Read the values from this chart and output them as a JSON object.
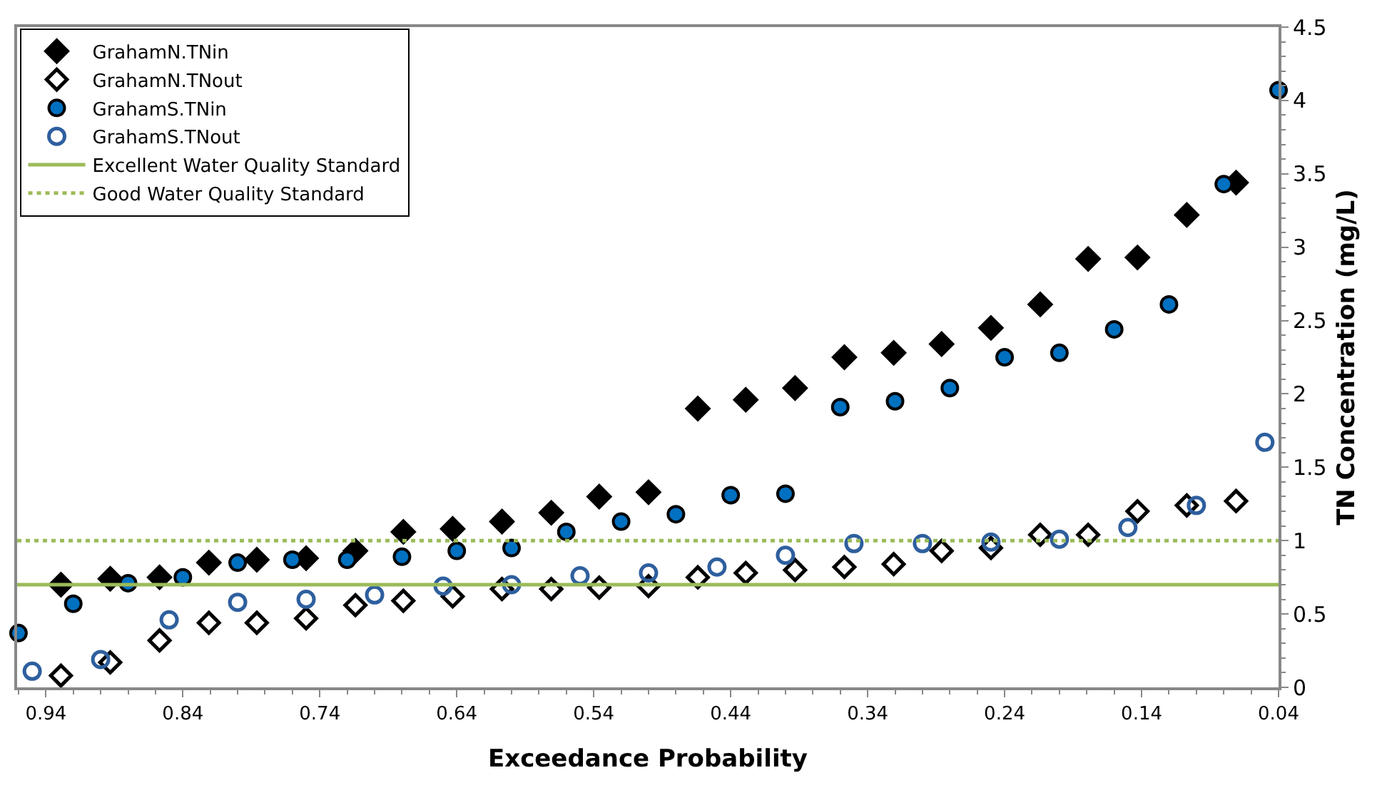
{
  "chart_data": {
    "type": "scatter",
    "xlabel": "Exceedance Probability",
    "ylabel": "TN Concentration (mg/L)",
    "xlim": [
      0.961,
      0.04
    ],
    "xticks": [
      0.94,
      0.84,
      0.74,
      0.64,
      0.54,
      0.44,
      0.34,
      0.24,
      0.14,
      0.04
    ],
    "ylim": [
      0,
      4.5
    ],
    "yticks": [
      0,
      0.5,
      1,
      1.5,
      2,
      2.5,
      3,
      3.5,
      4,
      4.5
    ],
    "legend": "top left",
    "series": [
      {
        "name": "GrahamN.TNin",
        "color": "#000000",
        "marker": "diamond",
        "x": [
          0.929,
          0.893,
          0.857,
          0.821,
          0.786,
          0.75,
          0.714,
          0.679,
          0.643,
          0.607,
          0.571,
          0.536,
          0.5,
          0.464,
          0.429,
          0.393,
          0.357,
          0.321,
          0.286,
          0.25,
          0.214,
          0.179,
          0.143,
          0.107,
          0.071
        ],
        "values": [
          0.7,
          0.74,
          0.75,
          0.85,
          0.87,
          0.88,
          0.93,
          1.06,
          1.08,
          1.13,
          1.19,
          1.3,
          1.33,
          1.9,
          1.96,
          2.04,
          2.25,
          2.28,
          2.34,
          2.45,
          2.61,
          2.92,
          2.93,
          3.22,
          3.44
        ]
      },
      {
        "name": "GrahamN.TNout",
        "color": "#000000",
        "marker": "diamond",
        "x": [
          0.929,
          0.893,
          0.857,
          0.821,
          0.786,
          0.75,
          0.714,
          0.679,
          0.643,
          0.607,
          0.571,
          0.536,
          0.5,
          0.464,
          0.429,
          0.393,
          0.357,
          0.321,
          0.286,
          0.25,
          0.214,
          0.179,
          0.143,
          0.107,
          0.071
        ],
        "values": [
          0.08,
          0.17,
          0.32,
          0.44,
          0.44,
          0.47,
          0.56,
          0.59,
          0.62,
          0.67,
          0.67,
          0.68,
          0.69,
          0.75,
          0.78,
          0.8,
          0.82,
          0.84,
          0.93,
          0.95,
          1.04,
          1.04,
          1.2,
          1.24,
          1.27
        ]
      },
      {
        "name": "GrahamS.TNin",
        "color": "#0070c0",
        "marker": "circle",
        "x": [
          0.96,
          0.92,
          0.88,
          0.84,
          0.8,
          0.76,
          0.72,
          0.68,
          0.64,
          0.6,
          0.56,
          0.52,
          0.48,
          0.44,
          0.4,
          0.36,
          0.32,
          0.28,
          0.24,
          0.2,
          0.16,
          0.12,
          0.08,
          0.04
        ],
        "values": [
          0.37,
          0.57,
          0.71,
          0.75,
          0.85,
          0.87,
          0.87,
          0.89,
          0.93,
          0.95,
          1.06,
          1.13,
          1.18,
          1.31,
          1.32,
          1.91,
          1.95,
          2.04,
          2.25,
          2.28,
          2.44,
          2.61,
          3.43,
          4.07
        ]
      },
      {
        "name": "GrahamS.TNout",
        "color": "#2e5f9e",
        "marker": "circle",
        "x": [
          0.95,
          0.9,
          0.85,
          0.8,
          0.75,
          0.7,
          0.65,
          0.6,
          0.55,
          0.5,
          0.45,
          0.4,
          0.35,
          0.3,
          0.25,
          0.2,
          0.15,
          0.1,
          0.05
        ],
        "values": [
          0.11,
          0.19,
          0.46,
          0.58,
          0.6,
          0.63,
          0.69,
          0.7,
          0.76,
          0.78,
          0.82,
          0.9,
          0.98,
          0.98,
          0.99,
          1.01,
          1.09,
          1.24,
          1.67
        ]
      }
    ],
    "ref_lines": [
      {
        "axis": "y",
        "value": 0.7,
        "label": "Excellent Water Quality Standard",
        "color": "#9bbb59",
        "line_style": "solid"
      },
      {
        "axis": "y",
        "value": 1.0,
        "label": "Good Water Quality Standard",
        "color": "#9bbb59",
        "line_style": "dotted"
      }
    ]
  }
}
